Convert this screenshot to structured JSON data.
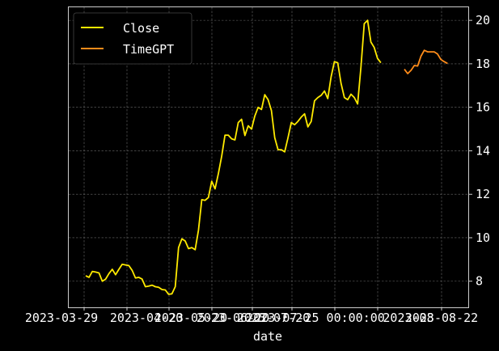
{
  "chart_data": {
    "type": "line",
    "title": "",
    "xlabel": "date",
    "ylabel": "",
    "x_tick_labels": [
      "2023-03-29",
      "2023-04-20",
      "2023-05-20",
      "2023-06-20",
      "2023-07-20",
      "2023-07-25 00:00:00",
      "2023-08",
      "2023-08-22"
    ],
    "y_ticks": [
      8,
      10,
      12,
      14,
      16,
      18,
      20
    ],
    "ylim": [
      6.8,
      20.6
    ],
    "grid": true,
    "legend_position": "top-left",
    "series": [
      {
        "name": "Close",
        "color": "#ffea00",
        "values": [
          8.25,
          8.18,
          8.45,
          8.42,
          8.38,
          8.0,
          8.1,
          8.35,
          8.55,
          8.3,
          8.55,
          8.78,
          8.75,
          8.72,
          8.5,
          8.15,
          8.18,
          8.1,
          7.75,
          7.78,
          7.82,
          7.75,
          7.72,
          7.62,
          7.6,
          7.4,
          7.42,
          7.75,
          9.55,
          9.95,
          9.85,
          9.5,
          9.55,
          9.45,
          10.35,
          11.75,
          11.72,
          11.85,
          12.6,
          12.25,
          12.95,
          13.75,
          14.72,
          14.72,
          14.55,
          14.5,
          15.3,
          15.45,
          14.7,
          15.15,
          15.0,
          15.6,
          16.0,
          15.9,
          16.58,
          16.35,
          15.85,
          14.6,
          14.05,
          14.05,
          13.95,
          14.6,
          15.3,
          15.2,
          15.35,
          15.55,
          15.7,
          15.1,
          15.35,
          16.3,
          16.45,
          16.55,
          16.75,
          16.4,
          17.4,
          18.1,
          18.05,
          17.1,
          16.45,
          16.35,
          16.6,
          16.45,
          16.15,
          17.85,
          19.85,
          20.0,
          19.0,
          18.75,
          18.25,
          18.05
        ]
      },
      {
        "name": "TimeGPT",
        "color": "#ff8c1a",
        "values": [
          17.75,
          17.55,
          17.7,
          17.92,
          17.9,
          18.35,
          18.62,
          18.55,
          18.55,
          18.55,
          18.45,
          18.2,
          18.1,
          18.02
        ]
      }
    ]
  }
}
